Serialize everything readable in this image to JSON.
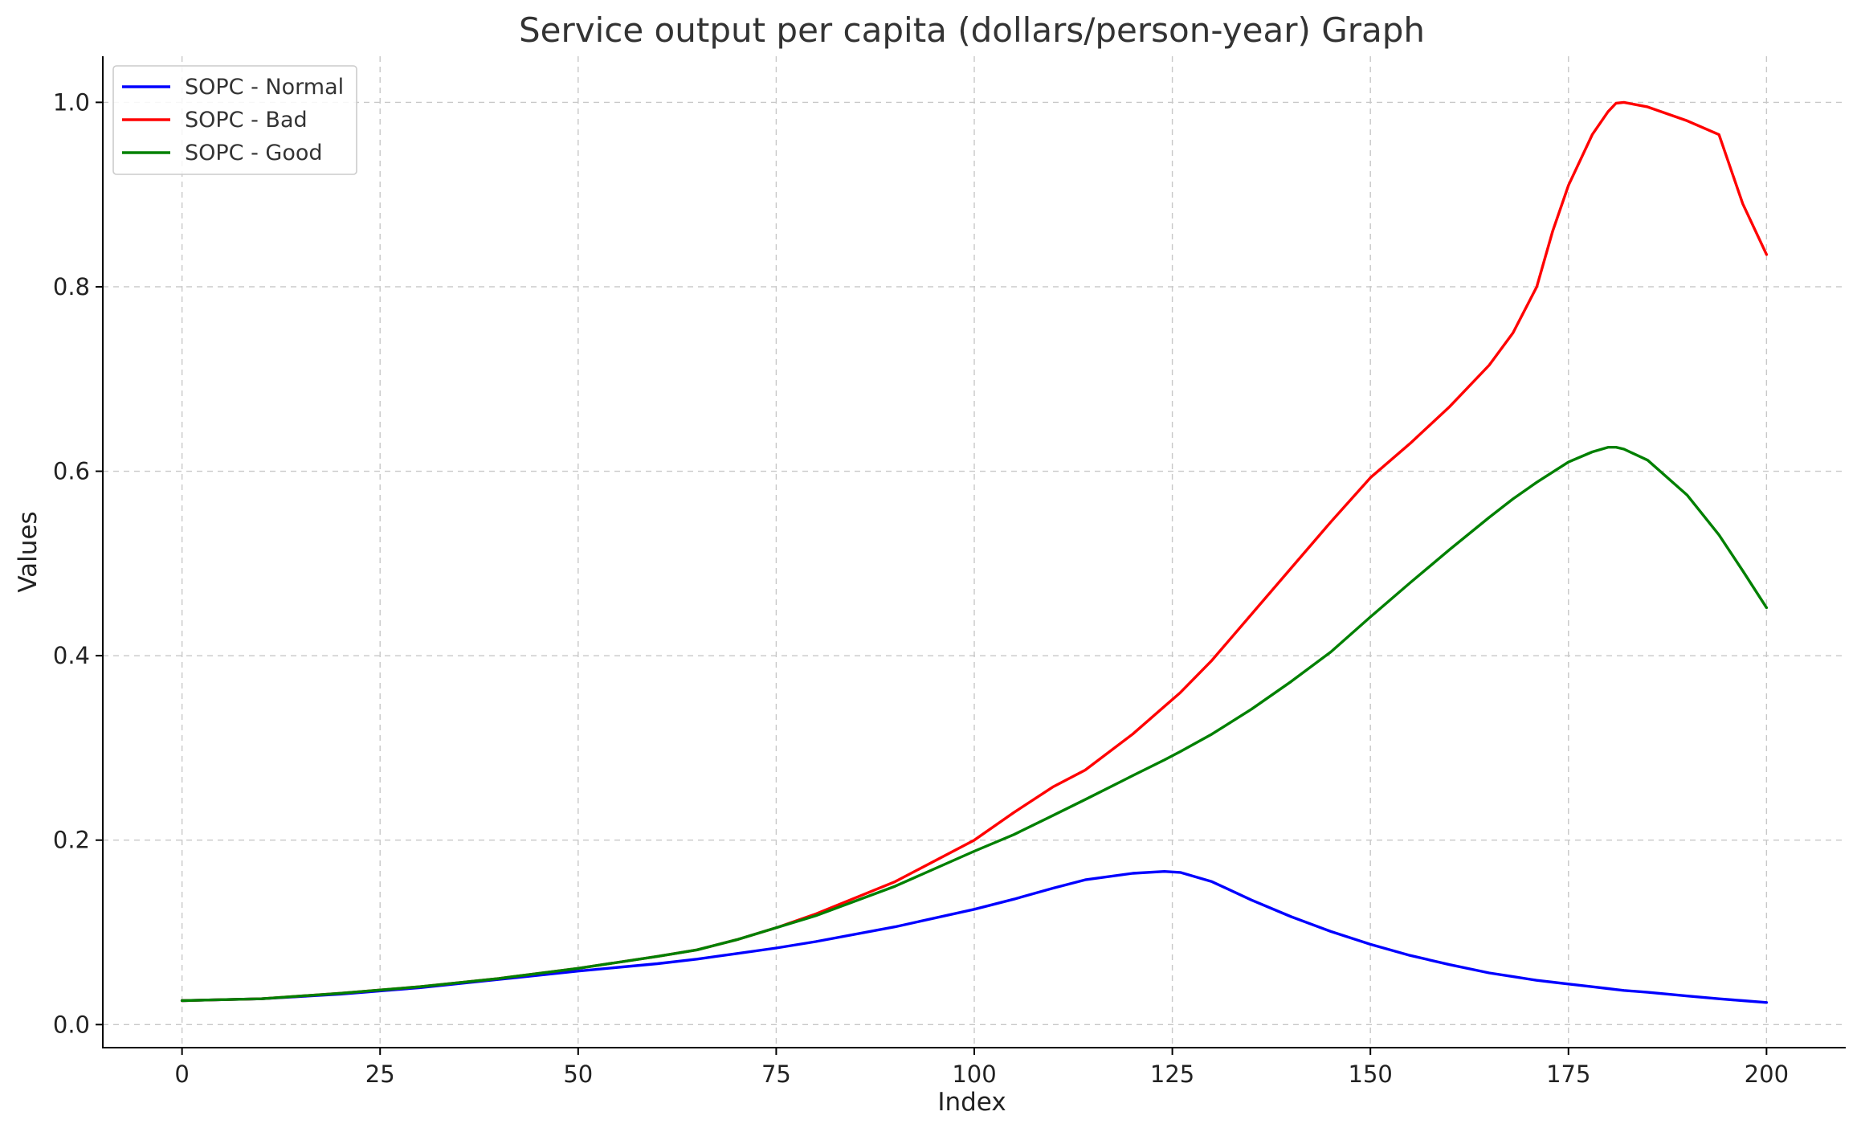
{
  "chart_data": {
    "type": "line",
    "title": "Service output per capita (dollars/person-year) Graph",
    "xlabel": "Index",
    "ylabel": "Values",
    "xlim": [
      -10,
      210
    ],
    "ylim": [
      -0.025,
      1.05
    ],
    "xticks": [
      0,
      25,
      50,
      75,
      100,
      125,
      150,
      175,
      200
    ],
    "xtick_labels": [
      "0",
      "25",
      "50",
      "75",
      "100",
      "125",
      "150",
      "175",
      "200"
    ],
    "yticks": [
      0.0,
      0.2,
      0.4,
      0.6,
      0.8,
      1.0
    ],
    "ytick_labels": [
      "0.0",
      "0.2",
      "0.4",
      "0.6",
      "0.8",
      "1.0"
    ],
    "grid": true,
    "legend_position": "top-left",
    "x": [
      0,
      10,
      20,
      30,
      40,
      50,
      60,
      65,
      70,
      75,
      80,
      90,
      100,
      105,
      110,
      114,
      120,
      124,
      126,
      130,
      135,
      140,
      145,
      150,
      155,
      160,
      165,
      168,
      171,
      173,
      175,
      178,
      180,
      181,
      182,
      185,
      190,
      194,
      197,
      200
    ],
    "series": [
      {
        "name": "SOPC - Normal",
        "color": "#0000ff",
        "values": [
          0.026,
          0.028,
          0.033,
          0.04,
          0.049,
          0.058,
          0.066,
          0.071,
          0.077,
          0.083,
          0.09,
          0.106,
          0.125,
          0.136,
          0.148,
          0.157,
          0.164,
          0.166,
          0.165,
          0.155,
          0.135,
          0.117,
          0.101,
          0.087,
          0.075,
          0.065,
          0.056,
          0.052,
          0.048,
          0.046,
          0.044,
          0.041,
          0.039,
          0.038,
          0.037,
          0.035,
          0.031,
          0.028,
          0.026,
          0.024
        ]
      },
      {
        "name": "SOPC - Bad",
        "color": "#ff0000",
        "values": [
          0.026,
          0.028,
          0.034,
          0.041,
          0.05,
          0.061,
          0.074,
          0.081,
          0.092,
          0.105,
          0.12,
          0.155,
          0.2,
          0.23,
          0.258,
          0.276,
          0.315,
          0.345,
          0.36,
          0.395,
          0.445,
          0.495,
          0.545,
          0.593,
          0.63,
          0.67,
          0.715,
          0.75,
          0.8,
          0.86,
          0.91,
          0.965,
          0.99,
          0.999,
          1.0,
          0.995,
          0.98,
          0.965,
          0.89,
          0.835
        ]
      },
      {
        "name": "SOPC - Good",
        "color": "#008000",
        "values": [
          0.026,
          0.028,
          0.034,
          0.041,
          0.05,
          0.061,
          0.074,
          0.081,
          0.092,
          0.105,
          0.118,
          0.15,
          0.188,
          0.206,
          0.227,
          0.244,
          0.27,
          0.287,
          0.296,
          0.315,
          0.342,
          0.372,
          0.404,
          0.442,
          0.479,
          0.515,
          0.55,
          0.57,
          0.588,
          0.599,
          0.61,
          0.621,
          0.626,
          0.626,
          0.624,
          0.612,
          0.574,
          0.531,
          0.492,
          0.452
        ]
      }
    ]
  }
}
